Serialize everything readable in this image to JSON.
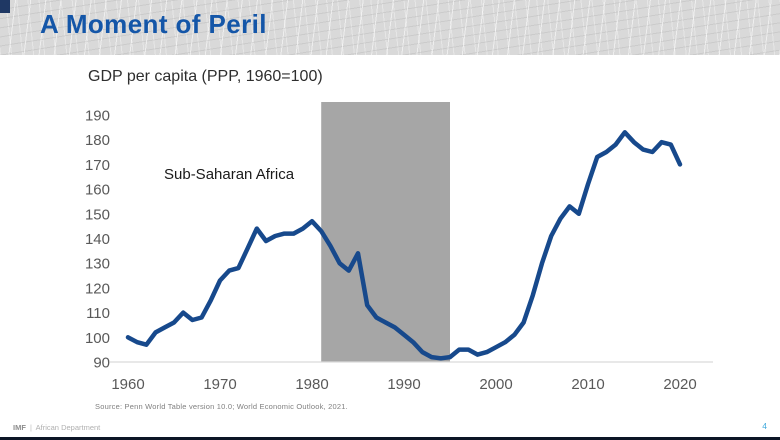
{
  "header": {
    "title": "A Moment of Peril"
  },
  "chart": {
    "title": "GDP per capita (PPP, 1960=100)",
    "series_label": "Sub-Saharan Africa"
  },
  "chart_data": {
    "type": "line",
    "title": "GDP per capita (PPP, 1960=100)",
    "xlabel": "",
    "ylabel": "",
    "x_ticks": [
      1960,
      1970,
      1980,
      1990,
      2000,
      2010,
      2020
    ],
    "y_ticks": [
      90,
      100,
      110,
      120,
      130,
      140,
      150,
      160,
      170,
      180,
      190
    ],
    "xlim": [
      1958,
      2023.5
    ],
    "ylim": [
      90,
      195
    ],
    "grid": "baseline-only",
    "legend": "inline-label",
    "line_color": "#17498C",
    "tick_color": "#595959",
    "baseline_color": "#D9D9D9",
    "shaded_region": {
      "start": 1981,
      "end": 1995,
      "color": "#A6A6A6"
    },
    "series": [
      {
        "name": "Sub-Saharan Africa",
        "x": [
          1960,
          1961,
          1962,
          1963,
          1964,
          1965,
          1966,
          1967,
          1968,
          1969,
          1970,
          1971,
          1972,
          1973,
          1974,
          1975,
          1976,
          1977,
          1978,
          1979,
          1980,
          1981,
          1982,
          1983,
          1984,
          1985,
          1986,
          1987,
          1988,
          1989,
          1990,
          1991,
          1992,
          1993,
          1994,
          1995,
          1996,
          1997,
          1998,
          1999,
          2000,
          2001,
          2002,
          2003,
          2004,
          2005,
          2006,
          2007,
          2008,
          2009,
          2010,
          2011,
          2012,
          2013,
          2014,
          2015,
          2016,
          2017,
          2018,
          2019,
          2020
        ],
        "values": [
          100,
          98,
          97,
          102,
          104,
          106,
          110,
          107,
          108,
          115,
          123,
          127,
          128,
          136,
          144,
          139,
          141,
          142,
          142,
          144,
          147,
          143,
          137,
          130,
          127,
          134,
          113,
          108,
          106,
          104,
          101,
          98,
          94,
          92,
          91.5,
          92,
          95,
          95,
          93,
          94,
          96,
          98,
          101,
          106,
          117,
          130,
          141,
          148,
          153,
          150,
          162,
          173,
          175,
          178,
          183,
          179,
          176,
          175,
          179,
          178,
          170
        ]
      }
    ]
  },
  "source": "Source: Penn World Table version 10.0; World Economic Outlook, 2021.",
  "footer": {
    "org": "IMF",
    "separator": "|",
    "department": "African Department",
    "page_number": "4"
  }
}
